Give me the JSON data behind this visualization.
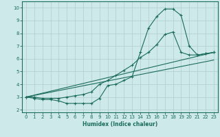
{
  "xlabel": "Humidex (Indice chaleur)",
  "bg_color": "#cde9e9",
  "grid_color": "#b0cccc",
  "line_color": "#1a6b5a",
  "xlim": [
    -0.5,
    23.5
  ],
  "ylim": [
    1.8,
    10.5
  ],
  "xticks": [
    0,
    1,
    2,
    3,
    4,
    5,
    6,
    7,
    8,
    9,
    10,
    11,
    12,
    13,
    14,
    15,
    16,
    17,
    18,
    19,
    20,
    21,
    22,
    23
  ],
  "yticks": [
    2,
    3,
    4,
    5,
    6,
    7,
    8,
    9,
    10
  ],
  "curve1_x": [
    0,
    1,
    2,
    3,
    4,
    5,
    6,
    7,
    8,
    9,
    10,
    11,
    12,
    13,
    14,
    15,
    16,
    17,
    18,
    19,
    20,
    21,
    22,
    23
  ],
  "curve1_y": [
    3.0,
    2.9,
    2.8,
    2.8,
    2.7,
    2.5,
    2.5,
    2.5,
    2.5,
    2.9,
    3.9,
    4.0,
    4.3,
    4.6,
    6.5,
    8.4,
    9.3,
    9.9,
    9.9,
    9.4,
    7.0,
    6.3,
    6.4,
    6.5
  ],
  "curve2_x": [
    0,
    1,
    2,
    3,
    4,
    5,
    6,
    7,
    8,
    9,
    10,
    11,
    12,
    13,
    14,
    15,
    16,
    17,
    18,
    19,
    20,
    21,
    22,
    23
  ],
  "curve2_y": [
    3.0,
    3.0,
    2.9,
    2.9,
    2.9,
    3.0,
    3.1,
    3.2,
    3.4,
    4.0,
    4.3,
    4.7,
    5.1,
    5.5,
    6.1,
    6.5,
    7.1,
    7.9,
    8.1,
    6.5,
    6.3,
    6.3,
    6.4,
    6.5
  ],
  "trend1_x": [
    0,
    23
  ],
  "trend1_y": [
    3.0,
    6.5
  ],
  "trend2_x": [
    0,
    23
  ],
  "trend2_y": [
    3.0,
    5.9
  ]
}
